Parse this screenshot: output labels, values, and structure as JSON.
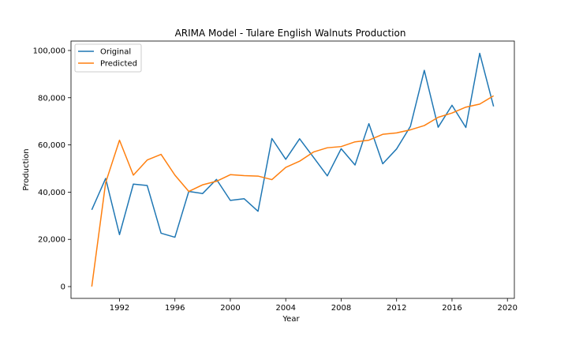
{
  "chart_data": {
    "type": "line",
    "title": "ARIMA Model - Tulare English Walnuts Production",
    "xlabel": "Year",
    "ylabel": "Production",
    "xlim": [
      1988.5,
      2020.5
    ],
    "ylim": [
      -5000,
      104000
    ],
    "x_ticks": [
      1992,
      1996,
      2000,
      2004,
      2008,
      2012,
      2016,
      2020
    ],
    "x_tick_labels": [
      "1992",
      "1996",
      "2000",
      "2004",
      "2008",
      "2012",
      "2016",
      "2020"
    ],
    "y_ticks": [
      0,
      20000,
      40000,
      60000,
      80000,
      100000
    ],
    "y_tick_labels": [
      "0",
      "20,000",
      "40,000",
      "60,000",
      "80,000",
      "100,000"
    ],
    "grid": false,
    "legend_position": "top-left",
    "x": [
      1990,
      1991,
      1992,
      1993,
      1994,
      1995,
      1996,
      1997,
      1998,
      1999,
      2000,
      2001,
      2002,
      2003,
      2004,
      2005,
      2006,
      2007,
      2008,
      2009,
      2010,
      2011,
      2012,
      2013,
      2014,
      2015,
      2016,
      2017,
      2018,
      2019
    ],
    "series": [
      {
        "name": "Original",
        "color": "#1f77b4",
        "values": [
          32500,
          45800,
          22000,
          43400,
          42800,
          22600,
          20900,
          40300,
          39400,
          45400,
          36500,
          37200,
          31900,
          62700,
          53900,
          62600,
          54800,
          46900,
          58400,
          51500,
          69000,
          52000,
          58300,
          67900,
          91600,
          67500,
          76800,
          67400,
          98800,
          76300
        ]
      },
      {
        "name": "Predicted",
        "color": "#ff7f0e",
        "values": [
          0,
          44000,
          62000,
          47200,
          53600,
          56000,
          47200,
          40300,
          43100,
          44600,
          47400,
          47000,
          46800,
          45300,
          50500,
          53100,
          57000,
          58800,
          59300,
          61300,
          62000,
          64500,
          65100,
          66400,
          68200,
          71700,
          73500,
          76000,
          77300,
          80800
        ]
      }
    ]
  }
}
